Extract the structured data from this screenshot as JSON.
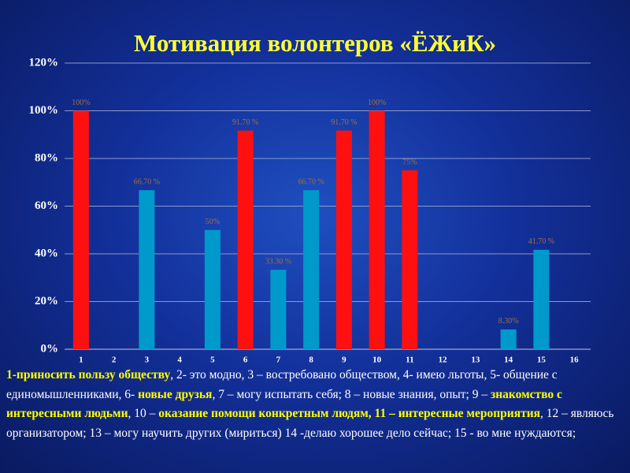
{
  "chart_data": {
    "type": "bar",
    "title": "Мотивация волонтеров «ЁЖиК»",
    "categories": [
      "1",
      "2",
      "3",
      "4",
      "5",
      "6",
      "7",
      "8",
      "9",
      "10",
      "11",
      "12",
      "13",
      "14",
      "15",
      "16"
    ],
    "values": [
      100,
      null,
      66.7,
      null,
      50,
      91.7,
      33.3,
      66.7,
      91.7,
      100,
      75,
      null,
      null,
      8.3,
      41.7,
      null
    ],
    "value_labels": [
      "100%",
      null,
      "66.70 %",
      null,
      "50%",
      "91.70 %",
      "33.30 %",
      "66.70 %",
      "91.70 %",
      "100%",
      "75%",
      null,
      null,
      "8.30%",
      "41.70 %",
      null
    ],
    "colors": [
      "#ff1010",
      null,
      "#0099cc",
      null,
      "#0099cc",
      "#ff1010",
      "#0099cc",
      "#0099cc",
      "#ff1010",
      "#ff1010",
      "#ff1010",
      null,
      null,
      "#0099cc",
      "#0099cc",
      null
    ],
    "ylim": [
      0,
      120
    ],
    "yticks": [
      {
        "value": 0,
        "label": "0%"
      },
      {
        "value": 20,
        "label": "20%"
      },
      {
        "value": 40,
        "label": "40%"
      },
      {
        "value": 60,
        "label": "60%"
      },
      {
        "value": 80,
        "label": "80%"
      },
      {
        "value": 100,
        "label": "100%"
      },
      {
        "value": 120,
        "label": "120%"
      }
    ],
    "grid": true,
    "caption": [
      {
        "text": "1-приносить пользу обществу",
        "highlight": true
      },
      {
        "text": ", 2- это модно, 3 – востребовано обществом, 4- имею льготы, 5- общение с единомышленниками, 6- ",
        "highlight": false
      },
      {
        "text": "новые друзья",
        "highlight": true
      },
      {
        "text": ", 7 – могу испытать себя; 8 – новые знания, опыт; 9 – ",
        "highlight": false
      },
      {
        "text": "знакомство с интересными людьми",
        "highlight": true
      },
      {
        "text": ", 10 – ",
        "highlight": false
      },
      {
        "text": "оказание помощи конкретным людям, 11 – интересные мероприятия",
        "highlight": true
      },
      {
        "text": ", 12 – являюсь организатором;  13 – могу научить других (мириться) 14 -делаю хорошее дело сейчас;  15 - во мне нуждаются;",
        "highlight": false
      }
    ]
  }
}
